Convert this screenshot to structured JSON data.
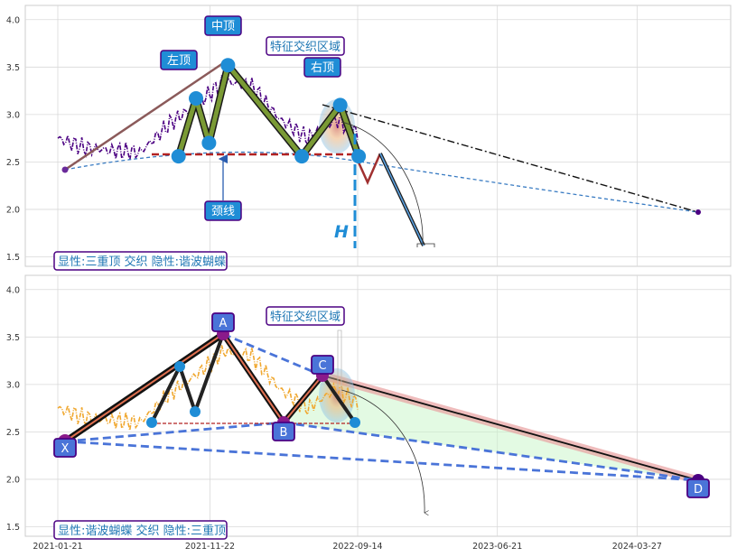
{
  "chart_data": [
    {
      "type": "line",
      "panel": "top",
      "ylim": [
        1.4,
        4.15
      ],
      "yticks": [
        1.5,
        2.0,
        2.5,
        3.0,
        3.5,
        4.0
      ],
      "ytick_labels": [
        "1.5",
        "2.0",
        "2.5",
        "3.0",
        "3.5",
        "4.0"
      ],
      "grid": true,
      "price_series": {
        "x": [
          "2021-01-21",
          "2021-03-15",
          "2021-05-10",
          "2021-07-05",
          "2021-09-01",
          "2021-10-25",
          "2021-12-20",
          "2022-02-14",
          "2022-04-11",
          "2022-06-06",
          "2022-08-01",
          "2022-09-14"
        ],
        "y": [
          2.75,
          2.65,
          2.62,
          2.6,
          2.9,
          3.1,
          3.35,
          3.3,
          2.95,
          2.75,
          2.95,
          2.8
        ],
        "color": "#4b0082"
      },
      "triple_top": {
        "points": [
          {
            "date": "2021-09-20",
            "value": 2.56
          },
          {
            "date": "2021-10-25",
            "value": 3.17
          },
          {
            "date": "2021-11-20",
            "value": 2.7
          },
          {
            "date": "2021-12-28",
            "value": 3.52
          },
          {
            "date": "2022-05-25",
            "value": 2.56
          },
          {
            "date": "2022-08-10",
            "value": 3.1
          },
          {
            "date": "2022-09-16",
            "value": 2.56
          }
        ],
        "neckline": 2.56,
        "color": "#6b8e23"
      },
      "projection": [
        {
          "date": "2022-09-16",
          "value": 2.56
        },
        {
          "date": "2022-10-10",
          "value": 2.28
        },
        {
          "date": "2022-11-05",
          "value": 2.58
        },
        {
          "date": "2023-01-25",
          "value": 1.6
        }
      ],
      "pattern_end": {
        "date": "2024-10-20",
        "value": 1.95
      },
      "start_point": {
        "date": "2021-02-10",
        "value": 2.4
      },
      "annotations": [
        {
          "text": "中顶",
          "type": "box"
        },
        {
          "text": "左顶",
          "type": "box"
        },
        {
          "text": "右顶",
          "type": "box"
        },
        {
          "text": "特征交织区域",
          "type": "outline"
        },
        {
          "text": "颈线",
          "type": "box"
        },
        {
          "text": "H",
          "type": "height"
        }
      ],
      "caption": "显性:三重顶 交织 隐性:谐波蝴蝶"
    },
    {
      "type": "line",
      "panel": "bottom",
      "ylim": [
        1.4,
        4.15
      ],
      "yticks": [
        1.5,
        2.0,
        2.5,
        3.0,
        3.5,
        4.0
      ],
      "ytick_labels": [
        "1.5",
        "2.0",
        "2.5",
        "3.0",
        "3.5",
        "4.0"
      ],
      "x_tick_labels": [
        "2021-01-21",
        "2021-11-22",
        "2022-09-14",
        "2023-06-21",
        "2024-03-27"
      ],
      "grid": true,
      "price_series": {
        "x": [
          "2021-01-21",
          "2021-03-15",
          "2021-05-10",
          "2021-07-05",
          "2021-09-01",
          "2021-10-25",
          "2021-12-20",
          "2022-02-14",
          "2022-04-11",
          "2022-06-06",
          "2022-08-01",
          "2022-09-14"
        ],
        "y": [
          2.75,
          2.65,
          2.62,
          2.6,
          2.9,
          3.1,
          3.35,
          3.3,
          2.95,
          2.75,
          2.95,
          2.8
        ],
        "color": "#f0a830"
      },
      "butterfly": {
        "X": {
          "date": "2021-02-10",
          "value": 2.38
        },
        "A": {
          "date": "2021-12-28",
          "value": 3.52
        },
        "B": {
          "date": "2022-05-25",
          "value": 2.56
        },
        "C": {
          "date": "2022-08-10",
          "value": 3.1
        },
        "D": {
          "date": "2024-10-20",
          "value": 1.95
        }
      },
      "point_labels": [
        "X",
        "A",
        "B",
        "C",
        "D"
      ],
      "annotations": [
        {
          "text": "特征交织区域",
          "type": "outline"
        }
      ],
      "caption": "显性:谐波蝴蝶 交织 隐性:三重顶"
    }
  ],
  "colors": {
    "box_fill": "#1f8dd6",
    "box_edge": "#4b0082",
    "neckline": "#b22222",
    "height_line": "#1f8dd6",
    "dashed_blue": "#4a74d8",
    "projection_red": "#a03030",
    "caption_text": "#1f77b4"
  }
}
